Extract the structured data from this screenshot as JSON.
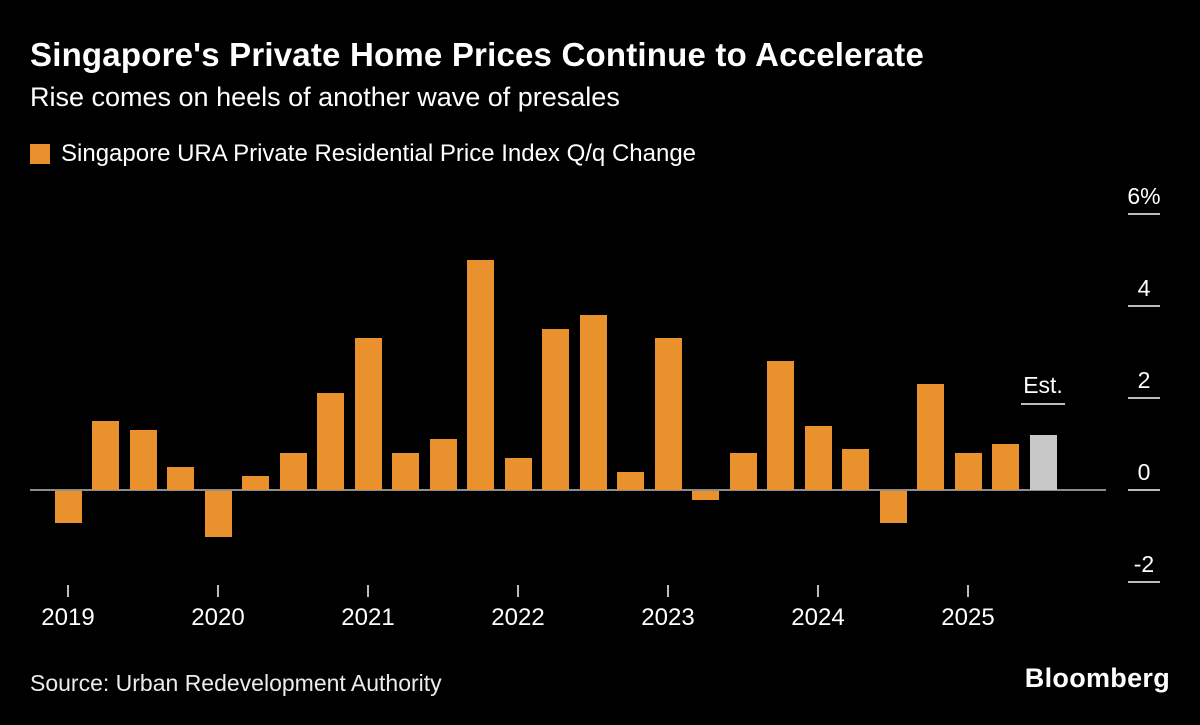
{
  "header": {
    "title": "Singapore's Private Home Prices Continue to Accelerate",
    "subtitle": "Rise comes on heels of another wave of presales"
  },
  "legend": {
    "label": "Singapore URA Private Residential Price Index Q/q Change",
    "swatch_color": "#E8912D"
  },
  "chart_data": {
    "type": "bar",
    "title": "Singapore's Private Home Prices Continue to Accelerate",
    "subtitle": "Rise comes on heels of another wave of presales",
    "legend_entries": [
      "Singapore URA Private Residential Price Index Q/q Change"
    ],
    "unit": "%",
    "ylim": [
      -2.6,
      6.4
    ],
    "grid": false,
    "legend_position": "top-left",
    "y_axis_side": "right",
    "yticks": [
      {
        "value": 6,
        "label": "6%"
      },
      {
        "value": 4,
        "label": "4"
      },
      {
        "value": 2,
        "label": "2"
      },
      {
        "value": 0,
        "label": "0"
      },
      {
        "value": -2,
        "label": "-2"
      }
    ],
    "categories": [
      "Q1 2019",
      "Q2 2019",
      "Q3 2019",
      "Q4 2019",
      "Q1 2020",
      "Q2 2020",
      "Q3 2020",
      "Q4 2020",
      "Q1 2021",
      "Q2 2021",
      "Q3 2021",
      "Q4 2021",
      "Q1 2022",
      "Q2 2022",
      "Q3 2022",
      "Q4 2022",
      "Q1 2023",
      "Q2 2023",
      "Q3 2023",
      "Q4 2023",
      "Q1 2024",
      "Q2 2024",
      "Q3 2024",
      "Q4 2024",
      "Q1 2025",
      "Q2 2025",
      "Q3 2025 (Est.)"
    ],
    "values": [
      -0.7,
      1.5,
      1.3,
      0.5,
      -1.0,
      0.3,
      0.8,
      2.1,
      3.3,
      0.8,
      1.1,
      5.0,
      0.7,
      3.5,
      3.8,
      0.4,
      3.3,
      -0.2,
      0.8,
      2.8,
      1.4,
      0.9,
      -0.7,
      2.3,
      0.8,
      1.0,
      1.2
    ],
    "estimate_index": 26,
    "estimate_label": "Est.",
    "year_ticks": [
      {
        "year": "2019",
        "index": 0
      },
      {
        "year": "2020",
        "index": 4
      },
      {
        "year": "2021",
        "index": 8
      },
      {
        "year": "2022",
        "index": 12
      },
      {
        "year": "2023",
        "index": 16
      },
      {
        "year": "2024",
        "index": 20
      },
      {
        "year": "2025",
        "index": 24
      }
    ],
    "bar_color": "#E8912D",
    "estimate_bar_color": "#C8C8C8",
    "background_color": "#000000"
  },
  "footer": {
    "source": "Source: Urban Redevelopment Authority",
    "brand": "Bloomberg"
  }
}
